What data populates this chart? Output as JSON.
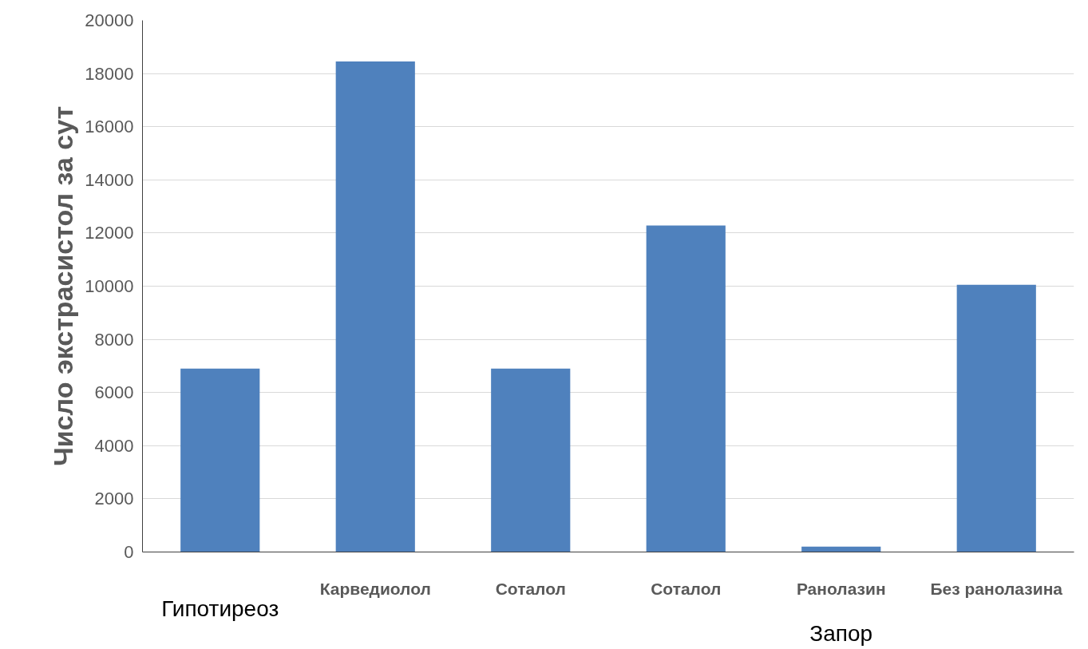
{
  "chart_data": {
    "type": "bar",
    "ylabel": "Число экстрасистол за сут",
    "categories": [
      null,
      "Карведиолол",
      "Соталол",
      "Соталол",
      "Ранолазин",
      "Без ранолазина"
    ],
    "values": [
      6900,
      18450,
      6900,
      12280,
      200,
      10050
    ],
    "color": "#4f81bd",
    "ylim": [
      0,
      20000
    ],
    "yticks": [
      0,
      2000,
      4000,
      6000,
      8000,
      10000,
      12000,
      14000,
      16000,
      18000,
      20000
    ],
    "grid": "y",
    "annotations": [
      "Гипотиреоз",
      "Запор"
    ]
  }
}
